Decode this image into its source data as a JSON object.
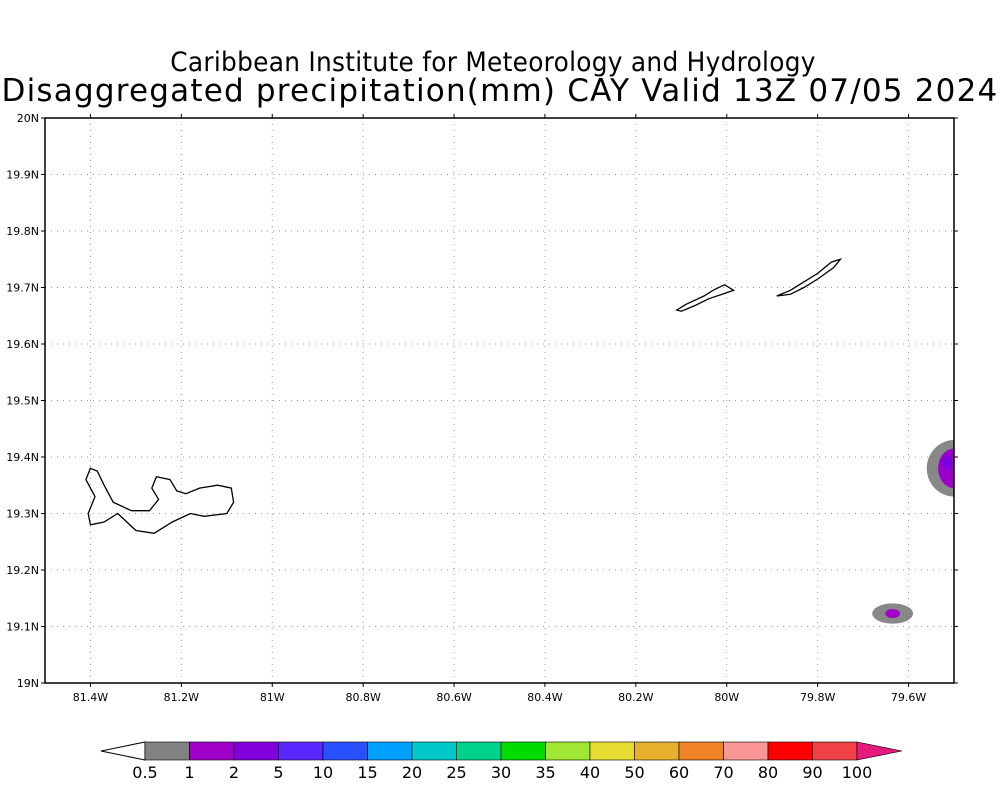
{
  "header": {
    "institute": "Caribbean Institute for Meteorology and Hydrology",
    "product": "Disaggregated precipitation(mm) CAY Valid 13Z 07/05 2024"
  },
  "map": {
    "lon_range": [
      -81.5,
      -79.5
    ],
    "lat_range": [
      19.0,
      20.0
    ],
    "lat_ticks": [
      {
        "value": 20.0,
        "label": "20N"
      },
      {
        "value": 19.9,
        "label": "19.9N"
      },
      {
        "value": 19.8,
        "label": "19.8N"
      },
      {
        "value": 19.7,
        "label": "19.7N"
      },
      {
        "value": 19.6,
        "label": "19.6N"
      },
      {
        "value": 19.5,
        "label": "19.5N"
      },
      {
        "value": 19.4,
        "label": "19.4N"
      },
      {
        "value": 19.3,
        "label": "19.3N"
      },
      {
        "value": 19.2,
        "label": "19.2N"
      },
      {
        "value": 19.1,
        "label": "19.1N"
      },
      {
        "value": 19.0,
        "label": "19N"
      }
    ],
    "lon_ticks": [
      {
        "value": -81.4,
        "label": "81.4W"
      },
      {
        "value": -81.2,
        "label": "81.2W"
      },
      {
        "value": -81.0,
        "label": "81W"
      },
      {
        "value": -80.8,
        "label": "80.8W"
      },
      {
        "value": -80.6,
        "label": "80.6W"
      },
      {
        "value": -80.4,
        "label": "80.4W"
      },
      {
        "value": -80.2,
        "label": "80.2W"
      },
      {
        "value": -80.0,
        "label": "80W"
      },
      {
        "value": -79.8,
        "label": "79.8W"
      },
      {
        "value": -79.6,
        "label": "79.6W"
      }
    ],
    "grid_lons": [
      -81.4,
      -81.2,
      -81.0,
      -80.8,
      -80.6,
      -80.4,
      -80.2,
      -80.0,
      -79.8,
      -79.6
    ],
    "grid_lats": [
      19.9,
      19.8,
      19.7,
      19.6,
      19.5,
      19.4,
      19.3,
      19.2,
      19.1
    ],
    "grid": true,
    "islands": [
      {
        "name": "Grand Cayman",
        "outline": [
          [
            -81.4,
            19.38
          ],
          [
            -81.41,
            19.36
          ],
          [
            -81.39,
            19.33
          ],
          [
            -81.405,
            19.3
          ],
          [
            -81.4,
            19.28
          ],
          [
            -81.37,
            19.285
          ],
          [
            -81.34,
            19.3
          ],
          [
            -81.3,
            19.27
          ],
          [
            -81.26,
            19.265
          ],
          [
            -81.22,
            19.285
          ],
          [
            -81.18,
            19.3
          ],
          [
            -81.15,
            19.295
          ],
          [
            -81.1,
            19.3
          ],
          [
            -81.085,
            19.32
          ],
          [
            -81.09,
            19.345
          ],
          [
            -81.12,
            19.35
          ],
          [
            -81.16,
            19.345
          ],
          [
            -81.19,
            19.335
          ],
          [
            -81.21,
            19.34
          ],
          [
            -81.225,
            19.36
          ],
          [
            -81.255,
            19.365
          ],
          [
            -81.265,
            19.345
          ],
          [
            -81.25,
            19.325
          ],
          [
            -81.27,
            19.305
          ],
          [
            -81.31,
            19.305
          ],
          [
            -81.35,
            19.32
          ],
          [
            -81.37,
            19.35
          ],
          [
            -81.385,
            19.375
          ],
          [
            -81.4,
            19.38
          ]
        ]
      },
      {
        "name": "Little Cayman",
        "outline": [
          [
            -80.11,
            19.66
          ],
          [
            -80.09,
            19.67
          ],
          [
            -80.05,
            19.685
          ],
          [
            -80.03,
            19.695
          ],
          [
            -80.005,
            19.705
          ],
          [
            -79.985,
            19.695
          ],
          [
            -80.01,
            19.688
          ],
          [
            -80.04,
            19.68
          ],
          [
            -80.07,
            19.668
          ],
          [
            -80.1,
            19.658
          ],
          [
            -80.11,
            19.66
          ]
        ]
      },
      {
        "name": "Cayman Brac",
        "outline": [
          [
            -79.89,
            19.685
          ],
          [
            -79.86,
            19.695
          ],
          [
            -79.83,
            19.71
          ],
          [
            -79.8,
            19.725
          ],
          [
            -79.77,
            19.745
          ],
          [
            -79.75,
            19.75
          ],
          [
            -79.765,
            19.735
          ],
          [
            -79.8,
            19.715
          ],
          [
            -79.83,
            19.7
          ],
          [
            -79.86,
            19.688
          ],
          [
            -79.89,
            19.685
          ]
        ]
      }
    ],
    "precip_cells": [
      {
        "lon": -79.5,
        "lat": 19.38,
        "rx": 0.06,
        "ry": 0.05,
        "color": "#888888"
      },
      {
        "lon": -79.5,
        "lat": 19.38,
        "rx": 0.035,
        "ry": 0.035,
        "color": "#9a00ca"
      },
      {
        "lon": -79.515,
        "lat": 19.39,
        "rx": 0.012,
        "ry": 0.012,
        "color": "#7d00e0"
      },
      {
        "lon": -79.635,
        "lat": 19.123,
        "rx": 0.045,
        "ry": 0.018,
        "color": "#888888"
      },
      {
        "lon": -79.635,
        "lat": 19.123,
        "rx": 0.016,
        "ry": 0.008,
        "color": "#a000c8"
      }
    ]
  },
  "colorbar": {
    "colors": [
      "#828282",
      "#a000c8",
      "#8200dc",
      "#5a28ff",
      "#2850ff",
      "#00a0ff",
      "#00c8c8",
      "#00d28c",
      "#00dc00",
      "#a0e632",
      "#e6dc32",
      "#e6af2d",
      "#f08228",
      "#fa9696",
      "#ff0000",
      "#f04146"
    ],
    "over_color": "#e6197d",
    "under_color": "#ffffff",
    "labels": [
      "0.5",
      "1",
      "2",
      "5",
      "10",
      "15",
      "20",
      "25",
      "30",
      "35",
      "40",
      "50",
      "60",
      "70",
      "80",
      "90",
      "100"
    ]
  }
}
